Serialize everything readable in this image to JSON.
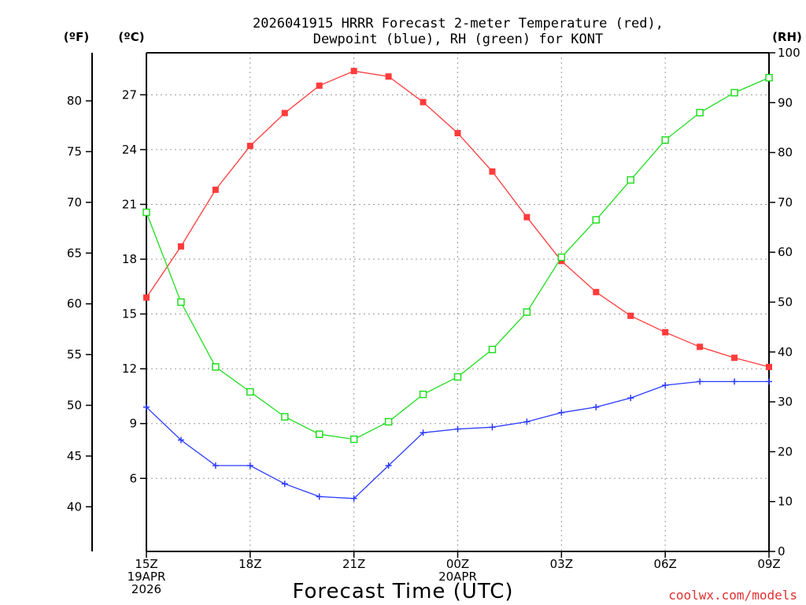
{
  "chart_data": {
    "type": "line",
    "title": [
      "2026041915 HRRR Forecast 2-meter Temperature (red),",
      "Dewpoint (blue), RH (green) for KONT"
    ],
    "xlabel": "Forecast Time (UTC)",
    "credit": "coolwx.com/models",
    "x_hours": [
      0,
      1,
      2,
      3,
      4,
      5,
      6,
      7,
      8,
      9,
      10,
      11,
      12,
      13,
      14,
      15,
      16,
      17,
      18
    ],
    "x_ticks": [
      {
        "hour": 0,
        "lines": [
          "15Z",
          "19APR",
          "2026"
        ]
      },
      {
        "hour": 3,
        "lines": [
          "18Z"
        ]
      },
      {
        "hour": 6,
        "lines": [
          "21Z"
        ]
      },
      {
        "hour": 9,
        "lines": [
          "00Z",
          "20APR"
        ]
      },
      {
        "hour": 12,
        "lines": [
          "03Z"
        ]
      },
      {
        "hour": 15,
        "lines": [
          "06Z"
        ]
      },
      {
        "hour": 18,
        "lines": [
          "09Z"
        ]
      }
    ],
    "axes": {
      "fahrenheit": {
        "unit": "(ºF)",
        "ticks": [
          40,
          45,
          50,
          55,
          60,
          65,
          70,
          75,
          80
        ]
      },
      "celsius": {
        "unit": "(ºC)",
        "ylim": [
          2,
          29.3
        ],
        "ticks": [
          6,
          9,
          12,
          15,
          18,
          21,
          24,
          27
        ]
      },
      "rh": {
        "unit": "(RH)",
        "ylim": [
          0,
          100
        ],
        "ticks": [
          0,
          10,
          20,
          30,
          40,
          50,
          60,
          70,
          80,
          90,
          100
        ]
      }
    },
    "series": [
      {
        "name": "Temperature",
        "axis": "celsius",
        "color": "#ff3b3b",
        "marker": "filled-square",
        "values": [
          15.9,
          18.7,
          21.8,
          24.2,
          26.0,
          27.5,
          28.3,
          28.0,
          26.6,
          24.9,
          22.8,
          20.3,
          17.9,
          16.2,
          14.9,
          14.0,
          13.2,
          12.6,
          12.1
        ]
      },
      {
        "name": "Dewpoint",
        "axis": "celsius",
        "color": "#2b3bff",
        "marker": "plus",
        "values": [
          9.9,
          8.1,
          6.7,
          6.7,
          5.7,
          5.0,
          4.9,
          6.7,
          8.5,
          8.7,
          8.8,
          9.1,
          9.6,
          9.9,
          10.4,
          11.1,
          11.3,
          11.3,
          11.3
        ]
      },
      {
        "name": "RH",
        "axis": "rh",
        "color": "#22dd22",
        "marker": "open-square",
        "values": [
          68,
          50,
          37,
          32,
          27,
          23.5,
          22.5,
          26,
          31.5,
          35,
          40.5,
          48,
          59,
          66.5,
          74.5,
          82.5,
          88,
          92,
          95
        ]
      }
    ]
  }
}
